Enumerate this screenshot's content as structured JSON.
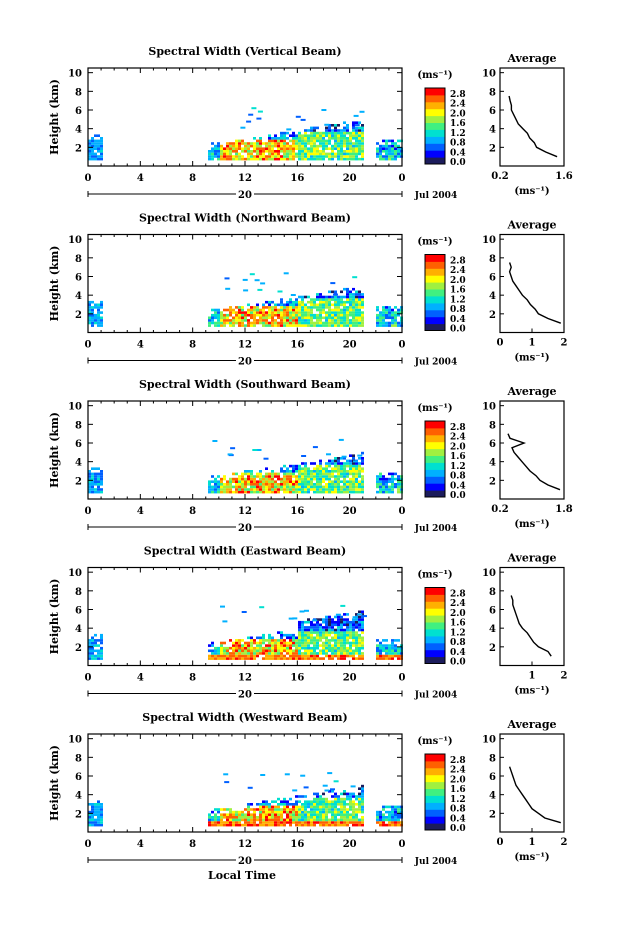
{
  "figure": {
    "footer_label": "Local Time",
    "unit_label": "(ms⁻¹)",
    "avg_title": "Average",
    "avg_xlabel": "(ms⁻¹)",
    "ylabel": "Height (km)",
    "date_label": "Jul 2004",
    "day_label": "20"
  },
  "colorbar": {
    "ticks": [
      "2.8",
      "2.4",
      "2.0",
      "1.6",
      "1.2",
      "0.8",
      "0.4",
      "0.0"
    ],
    "colors": [
      "#1c1c5c",
      "#0000ff",
      "#0060ff",
      "#00b0ff",
      "#00e0d0",
      "#40f080",
      "#a0f040",
      "#ffff00",
      "#ffb000",
      "#ff6000",
      "#ff0000"
    ]
  },
  "chart_data": [
    {
      "type": "heatmap",
      "title": "Spectral Width (Vertical Beam)",
      "x_ticks": [
        "0",
        "4",
        "8",
        "12",
        "16",
        "20",
        "0"
      ],
      "y_ticks": [
        "10",
        "8",
        "6",
        "4",
        "2"
      ],
      "colorbar_ticks": [
        "2.8",
        "2.4",
        "2.0",
        "1.6",
        "1.2",
        "0.8",
        "0.4",
        "0.0"
      ],
      "avg_x_ticks": [
        "0.2",
        "1.6"
      ],
      "avg_y_ticks": [
        "10",
        "8",
        "6",
        "4",
        "2"
      ],
      "avg_xlim": [
        0.2,
        1.6
      ],
      "avg_profile": {
        "height": [
          1,
          1.5,
          2,
          2.5,
          3,
          3.5,
          4,
          4.5,
          5,
          5.5,
          6,
          6.5,
          7,
          7.5
        ],
        "value": [
          1.45,
          1.2,
          1.0,
          0.95,
          0.85,
          0.8,
          0.7,
          0.6,
          0.55,
          0.5,
          0.45,
          0.45,
          0.42,
          0.4
        ]
      }
    },
    {
      "type": "heatmap",
      "title": "Spectral Width (Northward Beam)",
      "x_ticks": [
        "0",
        "4",
        "8",
        "12",
        "16",
        "20",
        "0"
      ],
      "y_ticks": [
        "10",
        "8",
        "6",
        "4",
        "2"
      ],
      "colorbar_ticks": [
        "2.8",
        "2.4",
        "2.0",
        "1.6",
        "1.2",
        "0.8",
        "0.4",
        "0.0"
      ],
      "avg_x_ticks": [
        "0",
        "1",
        "2"
      ],
      "avg_y_ticks": [
        "10",
        "8",
        "6",
        "4",
        "2"
      ],
      "avg_xlim": [
        0,
        2
      ],
      "avg_profile": {
        "height": [
          1,
          1.5,
          2,
          2.5,
          3,
          3.5,
          4,
          4.5,
          5,
          5.5,
          6,
          6.5,
          7,
          7.5
        ],
        "value": [
          1.9,
          1.5,
          1.2,
          1.1,
          0.95,
          0.85,
          0.7,
          0.6,
          0.5,
          0.4,
          0.35,
          0.3,
          0.35,
          0.3
        ]
      }
    },
    {
      "type": "heatmap",
      "title": "Spectral Width (Southward Beam)",
      "x_ticks": [
        "0",
        "4",
        "8",
        "12",
        "16",
        "20",
        "0"
      ],
      "y_ticks": [
        "10",
        "8",
        "6",
        "4",
        "2"
      ],
      "colorbar_ticks": [
        "2.8",
        "2.4",
        "2.0",
        "1.6",
        "1.2",
        "0.8",
        "0.4",
        "0.0"
      ],
      "avg_x_ticks": [
        "0.2",
        "1.8"
      ],
      "avg_y_ticks": [
        "10",
        "8",
        "6",
        "4",
        "2"
      ],
      "avg_xlim": [
        0.2,
        1.8
      ],
      "avg_profile": {
        "height": [
          1,
          1.5,
          2,
          2.5,
          3,
          3.5,
          4,
          4.5,
          5,
          5.5,
          6,
          6.5,
          7
        ],
        "value": [
          1.7,
          1.4,
          1.2,
          1.1,
          0.95,
          0.85,
          0.75,
          0.65,
          0.55,
          0.5,
          0.8,
          0.45,
          0.4
        ]
      }
    },
    {
      "type": "heatmap",
      "title": "Spectral Width (Eastward Beam)",
      "x_ticks": [
        "0",
        "4",
        "8",
        "12",
        "16",
        "20",
        "0"
      ],
      "y_ticks": [
        "10",
        "8",
        "6",
        "4",
        "2"
      ],
      "colorbar_ticks": [
        "2.8",
        "2.4",
        "2.0",
        "1.6",
        "1.2",
        "0.8",
        "0.4",
        "0.0"
      ],
      "avg_x_ticks": [
        "1",
        "2"
      ],
      "avg_y_ticks": [
        "10",
        "8",
        "6",
        "4",
        "2"
      ],
      "avg_xlim": [
        0,
        2
      ],
      "avg_profile": {
        "height": [
          1,
          1.5,
          2,
          2.5,
          3,
          3.5,
          4,
          4.5,
          5,
          5.5,
          6,
          6.5,
          7,
          7.5
        ],
        "value": [
          1.6,
          1.5,
          1.2,
          1.05,
          0.95,
          0.85,
          0.7,
          0.6,
          0.55,
          0.5,
          0.45,
          0.4,
          0.4,
          0.35
        ]
      }
    },
    {
      "type": "heatmap",
      "title": "Spectral Width (Westward Beam)",
      "x_ticks": [
        "0",
        "4",
        "8",
        "12",
        "16",
        "20",
        "0"
      ],
      "y_ticks": [
        "10",
        "8",
        "6",
        "4",
        "2"
      ],
      "colorbar_ticks": [
        "2.8",
        "2.4",
        "2.0",
        "1.6",
        "1.2",
        "0.8",
        "0.4",
        "0.0"
      ],
      "avg_x_ticks": [
        "0",
        "1",
        "2"
      ],
      "avg_y_ticks": [
        "10",
        "8",
        "6",
        "4",
        "2"
      ],
      "avg_xlim": [
        0,
        2
      ],
      "avg_profile": {
        "height": [
          1,
          1.5,
          2,
          2.5,
          3,
          3.5,
          4,
          4.5,
          5,
          5.5,
          6,
          6.5,
          7
        ],
        "value": [
          1.9,
          1.4,
          1.2,
          1.0,
          0.9,
          0.8,
          0.7,
          0.6,
          0.5,
          0.45,
          0.4,
          0.35,
          0.3
        ]
      }
    }
  ]
}
